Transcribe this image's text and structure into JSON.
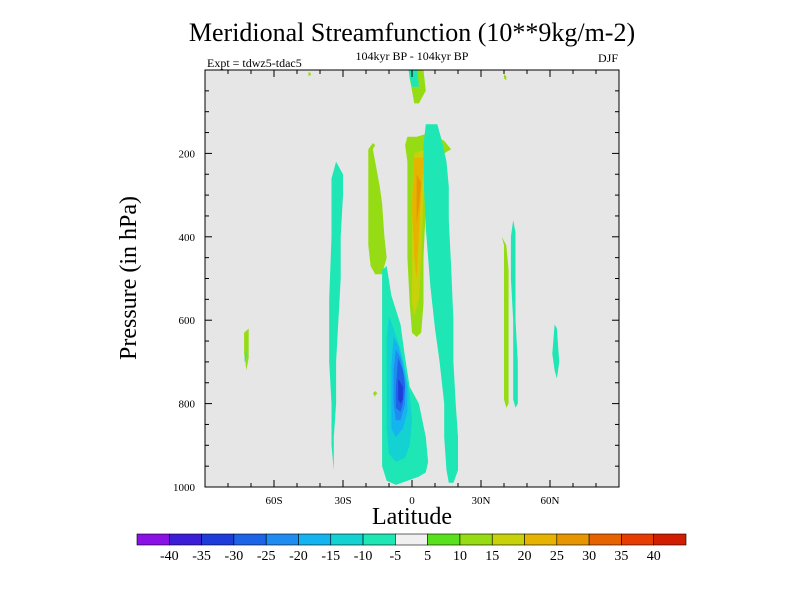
{
  "chart_data": {
    "type": "contour",
    "title": "Meridional Streamfunction (10**9kg/m-2)",
    "subtitle": "104kyr BP - 104kyr BP",
    "experiment": "Expt = tdwz5-tdac5",
    "season": "DJF",
    "xlabel": "Latitude",
    "ylabel": "Pressure (in hPa)",
    "xlim": [
      -90,
      90
    ],
    "ylim": [
      1000,
      0
    ],
    "x_ticks": [
      {
        "value": -60,
        "label": "60S"
      },
      {
        "value": -30,
        "label": "30S"
      },
      {
        "value": 0,
        "label": "0"
      },
      {
        "value": 30,
        "label": "30N"
      },
      {
        "value": 60,
        "label": "60N"
      }
    ],
    "y_ticks": [
      {
        "value": 200,
        "label": "200"
      },
      {
        "value": 400,
        "label": "400"
      },
      {
        "value": 600,
        "label": "600"
      },
      {
        "value": 800,
        "label": "800"
      },
      {
        "value": 1000,
        "label": "1000"
      }
    ],
    "background_color": "#e6e6e6",
    "colorbar": {
      "labels": [
        "-40",
        "-35",
        "-30",
        "-25",
        "-20",
        "-15",
        "-10",
        "-5",
        "5",
        "10",
        "15",
        "20",
        "25",
        "30",
        "35",
        "40"
      ],
      "colors": [
        "#8a12e6",
        "#3c1ed9",
        "#1e3cd9",
        "#1e64e6",
        "#1e8cf0",
        "#14b4f0",
        "#14d2d2",
        "#1ee6b4",
        "#f0f0f0",
        "#5ae11e",
        "#96dc14",
        "#c8d20a",
        "#e6b400",
        "#e69600",
        "#e66400",
        "#e63c00",
        "#d21e00"
      ]
    },
    "regions": [
      {
        "level": 10,
        "points": [
          [
            -71,
            620
          ],
          [
            -71,
            650
          ],
          [
            -71,
            690
          ],
          [
            -72,
            720
          ],
          [
            -73,
            680
          ],
          [
            -73,
            630
          ]
        ]
      },
      {
        "level": 10,
        "points": [
          [
            -45,
            4
          ],
          [
            -44,
            8
          ],
          [
            -44,
            12
          ],
          [
            -45,
            15
          ],
          [
            -45,
            10
          ]
        ]
      },
      {
        "level": 10,
        "points": [
          [
            -16,
            785
          ],
          [
            -16,
            780
          ],
          [
            -15,
            775
          ],
          [
            -16,
            770
          ],
          [
            -17,
            775
          ]
        ]
      },
      {
        "level": 10,
        "points": [
          [
            -17,
            175
          ],
          [
            -16,
            180
          ],
          [
            -17,
            190
          ],
          [
            -16,
            220
          ],
          [
            -14,
            280
          ],
          [
            -13,
            320
          ],
          [
            -12,
            400
          ],
          [
            -11,
            450
          ],
          [
            -13,
            490
          ],
          [
            -16,
            490
          ],
          [
            -18,
            470
          ],
          [
            -19,
            420
          ],
          [
            -19,
            350
          ],
          [
            -19,
            250
          ],
          [
            -19,
            190
          ]
        ]
      },
      {
        "level": 10,
        "points": [
          [
            -2,
            -50
          ],
          [
            3,
            -50
          ],
          [
            2,
            10
          ],
          [
            -1,
            10
          ],
          [
            -2,
            -20
          ]
        ]
      },
      {
        "level": 10,
        "points": [
          [
            -1,
            -50
          ],
          [
            4,
            -50
          ],
          [
            6,
            50
          ],
          [
            3,
            80
          ],
          [
            1,
            80
          ],
          [
            -1,
            20
          ]
        ]
      },
      {
        "level": 10,
        "points": [
          [
            -2,
            160
          ],
          [
            2,
            160
          ],
          [
            8,
            150
          ],
          [
            14,
            170
          ],
          [
            17,
            190
          ],
          [
            14,
            200
          ],
          [
            10,
            210
          ],
          [
            7,
            250
          ],
          [
            6,
            330
          ],
          [
            5,
            450
          ],
          [
            5,
            560
          ],
          [
            4,
            630
          ],
          [
            2,
            640
          ],
          [
            0,
            630
          ],
          [
            -1,
            560
          ],
          [
            -2,
            450
          ],
          [
            -2,
            300
          ],
          [
            -2,
            220
          ],
          [
            -3,
            180
          ]
        ]
      },
      {
        "level": 10,
        "points": [
          [
            39,
            400
          ],
          [
            41,
            420
          ],
          [
            42,
            480
          ],
          [
            42,
            600
          ],
          [
            42,
            700
          ],
          [
            42,
            800
          ],
          [
            41,
            810
          ],
          [
            40,
            790
          ],
          [
            40,
            700
          ],
          [
            40,
            600
          ],
          [
            40,
            500
          ],
          [
            40,
            420
          ]
        ]
      },
      {
        "level": 10,
        "points": [
          [
            40,
            10
          ],
          [
            41,
            15
          ],
          [
            41,
            25
          ],
          [
            40,
            20
          ]
        ]
      },
      {
        "level": 15,
        "points": [
          [
            1,
            200
          ],
          [
            6,
            190
          ],
          [
            10,
            200
          ],
          [
            6,
            230
          ],
          [
            5,
            300
          ],
          [
            4,
            450
          ],
          [
            3,
            550
          ],
          [
            1,
            590
          ],
          [
            0,
            560
          ],
          [
            0,
            400
          ],
          [
            0,
            300
          ]
        ]
      },
      {
        "level": 20,
        "points": [
          [
            1,
            210
          ],
          [
            5,
            210
          ],
          [
            4,
            300
          ],
          [
            3,
            400
          ],
          [
            2,
            500
          ],
          [
            1,
            450
          ],
          [
            0,
            330
          ]
        ]
      },
      {
        "level": 25,
        "points": [
          [
            2,
            250
          ],
          [
            4,
            270
          ],
          [
            3,
            330
          ],
          [
            2,
            370
          ],
          [
            2,
            300
          ]
        ]
      },
      {
        "level": -10,
        "points": [
          [
            -35,
            260
          ],
          [
            -33,
            220
          ],
          [
            -30,
            250
          ],
          [
            -30,
            300
          ],
          [
            -31,
            400
          ],
          [
            -31,
            500
          ],
          [
            -32,
            600
          ],
          [
            -33,
            700
          ],
          [
            -33,
            800
          ],
          [
            -34,
            880
          ],
          [
            -34,
            960
          ],
          [
            -35,
            900
          ],
          [
            -35,
            800
          ],
          [
            -36,
            700
          ],
          [
            -36,
            550
          ],
          [
            -35,
            400
          ]
        ]
      },
      {
        "level": -10,
        "points": [
          [
            -72,
            650
          ],
          [
            -72,
            690
          ],
          [
            -73,
            700
          ],
          [
            -72,
            670
          ]
        ]
      },
      {
        "level": -10,
        "points": [
          [
            -13,
            480
          ],
          [
            -11,
            470
          ],
          [
            -9,
            540
          ],
          [
            -5,
            610
          ],
          [
            -3,
            690
          ],
          [
            -1,
            760
          ],
          [
            3,
            800
          ],
          [
            6,
            880
          ],
          [
            7,
            940
          ],
          [
            6,
            965
          ],
          [
            3,
            975
          ],
          [
            -2,
            985
          ],
          [
            -7,
            995
          ],
          [
            -11,
            985
          ],
          [
            -13,
            950
          ],
          [
            -13,
            850
          ],
          [
            -13,
            760
          ],
          [
            -13,
            650
          ],
          [
            -13,
            560
          ]
        ]
      },
      {
        "level": -10,
        "points": [
          [
            6,
            130
          ],
          [
            11,
            130
          ],
          [
            13,
            170
          ],
          [
            15,
            220
          ],
          [
            16,
            280
          ],
          [
            16,
            360
          ],
          [
            17,
            470
          ],
          [
            18,
            600
          ],
          [
            18,
            700
          ],
          [
            19,
            800
          ],
          [
            20,
            880
          ],
          [
            20,
            960
          ],
          [
            18,
            990
          ],
          [
            16,
            990
          ],
          [
            15,
            960
          ],
          [
            14,
            880
          ],
          [
            14,
            800
          ],
          [
            12,
            700
          ],
          [
            10,
            620
          ],
          [
            8,
            520
          ],
          [
            6,
            380
          ],
          [
            5,
            250
          ],
          [
            5,
            180
          ]
        ]
      },
      {
        "level": -10,
        "points": [
          [
            44,
            360
          ],
          [
            45,
            390
          ],
          [
            45,
            500
          ],
          [
            45,
            600
          ],
          [
            46,
            700
          ],
          [
            46,
            800
          ],
          [
            45,
            810
          ],
          [
            44,
            790
          ],
          [
            44,
            700
          ],
          [
            44,
            600
          ],
          [
            43,
            500
          ],
          [
            43,
            400
          ]
        ]
      },
      {
        "level": -10,
        "points": [
          [
            62,
            610
          ],
          [
            63,
            620
          ],
          [
            64,
            700
          ],
          [
            63,
            740
          ],
          [
            62,
            720
          ],
          [
            61,
            680
          ]
        ]
      },
      {
        "level": -10,
        "points": [
          [
            -2,
            -20
          ],
          [
            2,
            -20
          ],
          [
            3,
            40
          ],
          [
            0,
            40
          ],
          [
            -1,
            20
          ]
        ]
      },
      {
        "level": -15,
        "points": [
          [
            -10,
            590
          ],
          [
            -8,
            620
          ],
          [
            -5,
            670
          ],
          [
            -3,
            720
          ],
          [
            -1,
            780
          ],
          [
            0,
            840
          ],
          [
            -1,
            900
          ],
          [
            -3,
            930
          ],
          [
            -7,
            940
          ],
          [
            -10,
            920
          ],
          [
            -11,
            860
          ],
          [
            -11,
            800
          ],
          [
            -11,
            700
          ],
          [
            -11,
            640
          ]
        ]
      },
      {
        "level": -20,
        "points": [
          [
            -8,
            640
          ],
          [
            -6,
            660
          ],
          [
            -4,
            700
          ],
          [
            -2,
            760
          ],
          [
            -2,
            820
          ],
          [
            -4,
            860
          ],
          [
            -7,
            880
          ],
          [
            -9,
            860
          ],
          [
            -9,
            790
          ],
          [
            -9,
            710
          ]
        ]
      },
      {
        "level": -25,
        "points": [
          [
            -7,
            670
          ],
          [
            -5,
            690
          ],
          [
            -3,
            740
          ],
          [
            -3,
            800
          ],
          [
            -5,
            840
          ],
          [
            -7,
            840
          ],
          [
            -8,
            800
          ],
          [
            -8,
            720
          ]
        ]
      },
      {
        "level": -30,
        "points": [
          [
            -6,
            690
          ],
          [
            -4,
            720
          ],
          [
            -3,
            760
          ],
          [
            -4,
            800
          ],
          [
            -5,
            820
          ],
          [
            -7,
            810
          ],
          [
            -7,
            760
          ]
        ]
      },
      {
        "level": -35,
        "points": [
          [
            -6,
            740
          ],
          [
            -4,
            760
          ],
          [
            -4,
            790
          ],
          [
            -5,
            800
          ],
          [
            -6,
            790
          ]
        ]
      }
    ]
  }
}
